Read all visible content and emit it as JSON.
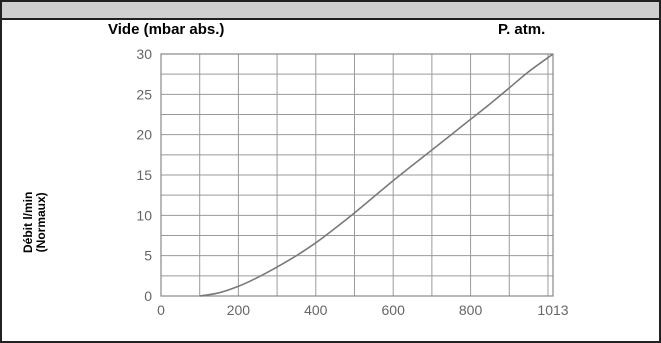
{
  "chart_data": {
    "type": "line",
    "xlabel": "Vide (mbar abs.)",
    "x_end_label": "P. atm.",
    "ylabel": [
      "Débit l/min",
      "(Normaux)"
    ],
    "xlim": [
      0,
      1013
    ],
    "ylim": [
      0,
      30
    ],
    "x_tick_labels": [
      "0",
      "200",
      "400",
      "600",
      "800",
      "1013"
    ],
    "x_tick_values": [
      0,
      200,
      400,
      600,
      800,
      1013
    ],
    "y_ticks": [
      0,
      5,
      10,
      15,
      20,
      25,
      30
    ],
    "grid": true,
    "series": [
      {
        "x": [
          100,
          150,
          200,
          250,
          300,
          350,
          400,
          450,
          500,
          550,
          600,
          650,
          700,
          750,
          800,
          850,
          900,
          950,
          1013
        ],
        "y": [
          0,
          0.4,
          1.2,
          2.3,
          3.6,
          5.0,
          6.6,
          8.4,
          10.3,
          12.3,
          14.3,
          16.2,
          18.1,
          20.0,
          21.9,
          23.8,
          25.8,
          27.8,
          30.0
        ]
      }
    ],
    "line_color": "#7a7a7a",
    "grid_color": "#9a9a9a"
  }
}
